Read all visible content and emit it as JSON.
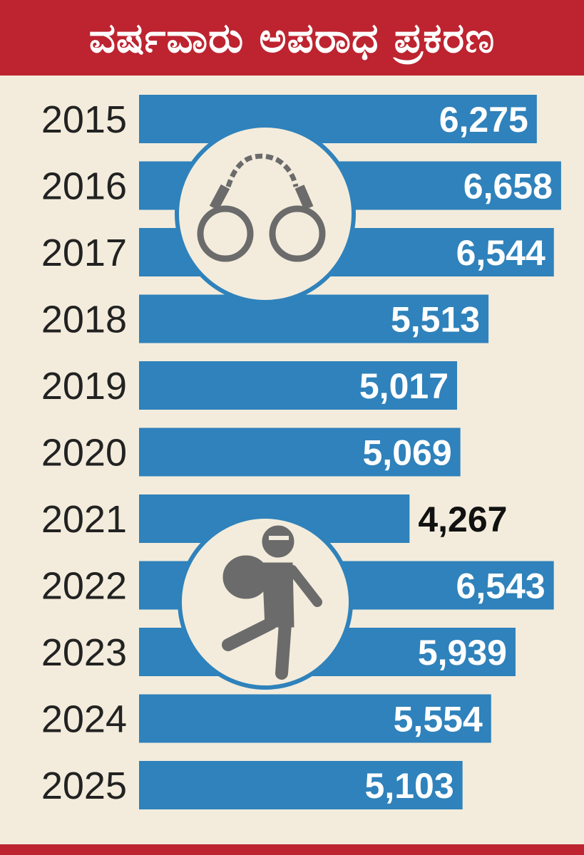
{
  "title": "ವರ್ಷವಾರು ಅಪರಾಧ ಪ್ರಕರಣ",
  "colors": {
    "header": "#bd2430",
    "bar": "#2f82bb",
    "background": "#f3ecdc",
    "icon": "#6b6b6b"
  },
  "icons": [
    "handcuffs-icon",
    "running-thief-icon"
  ],
  "chart_data": {
    "type": "bar",
    "orientation": "horizontal",
    "title": "ವರ್ಷವಾರು ಅಪರಾಧ ಪ್ರಕರಣ",
    "categories": [
      "2015",
      "2016",
      "2017",
      "2018",
      "2019",
      "2020",
      "2021",
      "2022",
      "2023",
      "2024",
      "2025"
    ],
    "values": [
      6275,
      6658,
      6544,
      5513,
      5017,
      5069,
      4267,
      6543,
      5939,
      5554,
      5103
    ],
    "labels": [
      "6,275",
      "6,658",
      "6,544",
      "5,513",
      "5,017",
      "5,069",
      "4,267",
      "6,543",
      "5,939",
      "5,554",
      "5,103"
    ],
    "xlim": [
      0,
      7000
    ],
    "grid": false,
    "xlabel": "",
    "ylabel": ""
  }
}
